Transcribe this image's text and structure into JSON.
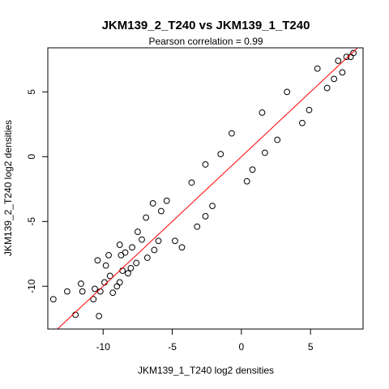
{
  "chart_data": {
    "type": "scatter",
    "title": "JKM139_2_T240 vs JKM139_1_T240",
    "subtitle": "Pearson correlation =  0.99",
    "xlabel": "JKM139_1_T240 log2 densities",
    "ylabel": "JKM139_2_T240 log2 densities",
    "xlim": [
      -14,
      8.8
    ],
    "ylim": [
      -13.3,
      8.4
    ],
    "x_ticks": [
      -10,
      -5,
      0,
      5
    ],
    "y_ticks": [
      -10,
      -5,
      0,
      5
    ],
    "x_tick_labels": [
      "-10",
      "-5",
      "0",
      "5"
    ],
    "y_tick_labels": [
      "-10",
      "-5",
      "0",
      "5"
    ],
    "grid": false,
    "legend": "none",
    "point_color": "#000000",
    "point_style": "open-circle",
    "fit_line": {
      "slope": 1.0,
      "intercept": 0.0,
      "color": "#ff0000"
    },
    "series": [
      {
        "values": [
          [
            -13.6,
            -11.0
          ],
          [
            -12.6,
            -10.4
          ],
          [
            -11.6,
            -9.8
          ],
          [
            -12.0,
            -12.2
          ],
          [
            -10.6,
            -10.2
          ],
          [
            -10.2,
            -10.4
          ],
          [
            -9.9,
            -9.7
          ],
          [
            -10.7,
            -11.0
          ],
          [
            -11.5,
            -10.4
          ],
          [
            -10.3,
            -12.3
          ],
          [
            -9.3,
            -10.5
          ],
          [
            -8.8,
            -9.7
          ],
          [
            -9.0,
            -10.0
          ],
          [
            -8.6,
            -8.8
          ],
          [
            -9.5,
            -9.2
          ],
          [
            -8.2,
            -9.0
          ],
          [
            -9.8,
            -8.4
          ],
          [
            -10.4,
            -8.0
          ],
          [
            -8.0,
            -8.6
          ],
          [
            -7.6,
            -8.2
          ],
          [
            -9.6,
            -7.6
          ],
          [
            -8.7,
            -7.6
          ],
          [
            -8.4,
            -7.4
          ],
          [
            -7.9,
            -7.0
          ],
          [
            -8.8,
            -6.8
          ],
          [
            -6.8,
            -7.8
          ],
          [
            -7.2,
            -6.4
          ],
          [
            -6.3,
            -7.2
          ],
          [
            -7.5,
            -5.8
          ],
          [
            -6.0,
            -6.5
          ],
          [
            -6.9,
            -4.7
          ],
          [
            -5.8,
            -4.2
          ],
          [
            -4.3,
            -7.0
          ],
          [
            -4.8,
            -6.5
          ],
          [
            -6.4,
            -3.6
          ],
          [
            -5.4,
            -3.4
          ],
          [
            -3.2,
            -5.4
          ],
          [
            -2.6,
            -4.6
          ],
          [
            -3.6,
            -2.0
          ],
          [
            -2.1,
            -3.8
          ],
          [
            -1.5,
            0.2
          ],
          [
            -2.6,
            -0.6
          ],
          [
            0.4,
            -1.9
          ],
          [
            0.8,
            -1.0
          ],
          [
            -0.7,
            1.8
          ],
          [
            1.5,
            3.4
          ],
          [
            1.7,
            0.3
          ],
          [
            2.6,
            1.3
          ],
          [
            3.3,
            5.0
          ],
          [
            4.4,
            2.6
          ],
          [
            4.9,
            3.6
          ],
          [
            5.5,
            6.8
          ],
          [
            6.2,
            5.3
          ],
          [
            6.7,
            6.0
          ],
          [
            7.0,
            7.4
          ],
          [
            7.3,
            6.5
          ],
          [
            7.6,
            7.7
          ],
          [
            7.9,
            7.7
          ],
          [
            8.1,
            8.0
          ]
        ]
      }
    ]
  }
}
